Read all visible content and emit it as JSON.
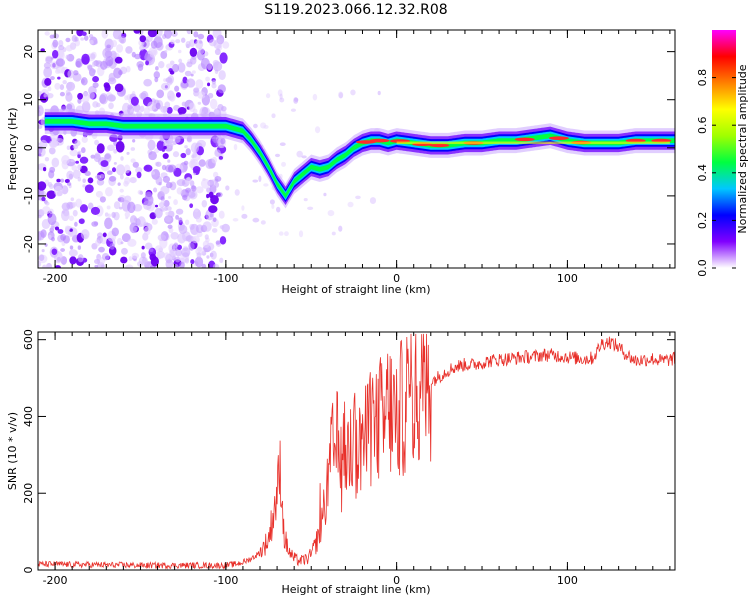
{
  "title": "S119.2023.066.12.32.R08",
  "colors": {
    "snr_line": "#e8302a",
    "axes": "#000000",
    "low_amp": "#e8d6ff"
  },
  "chart_data": [
    {
      "type": "heatmap",
      "name": "spectrogram",
      "xlabel": "Height of straight line (km)",
      "ylabel": "Frequency (Hz)",
      "xlim": [
        -210,
        163
      ],
      "ylim": [
        -25,
        24.5
      ],
      "x_ticks": [
        -200,
        -100,
        0,
        100
      ],
      "y_ticks": [
        -20,
        -10,
        0,
        10,
        20
      ],
      "description_series": {
        "name": "dominant frequency track",
        "x": [
          -205,
          -190,
          -180,
          -170,
          -160,
          -150,
          -140,
          -130,
          -120,
          -110,
          -100,
          -95,
          -90,
          -85,
          -80,
          -75,
          -70,
          -65,
          -60,
          -55,
          -50,
          -45,
          -40,
          -35,
          -30,
          -25,
          -20,
          -15,
          -10,
          -5,
          0,
          10,
          20,
          30,
          40,
          50,
          60,
          70,
          80,
          90,
          100,
          110,
          120,
          130,
          140,
          150,
          160
        ],
        "y": [
          5.5,
          5.5,
          5.0,
          5.0,
          4.5,
          4.5,
          4.5,
          4.5,
          4.5,
          4.5,
          4.5,
          4.0,
          3.5,
          1.5,
          -1.0,
          -4.0,
          -7.5,
          -10.0,
          -7.0,
          -5.5,
          -4.0,
          -4.5,
          -4.0,
          -2.5,
          -1.5,
          0.0,
          1.0,
          1.5,
          1.5,
          1.0,
          1.5,
          1.0,
          0.5,
          0.5,
          1.0,
          1.0,
          1.5,
          1.5,
          2.0,
          2.5,
          1.5,
          1.0,
          1.0,
          1.0,
          1.5,
          1.5,
          1.5
        ]
      }
    },
    {
      "type": "line",
      "name": "snr",
      "xlabel": "Height of straight line (km)",
      "ylabel": "SNR (10 * v/v)",
      "xlim": [
        -210,
        163
      ],
      "ylim": [
        0,
        620
      ],
      "x_ticks": [
        -200,
        -100,
        0,
        100
      ],
      "y_ticks": [
        0,
        200,
        400,
        600
      ],
      "series": [
        {
          "name": "SNR",
          "x": [
            -210,
            -200,
            -190,
            -180,
            -170,
            -160,
            -150,
            -140,
            -130,
            -120,
            -110,
            -100,
            -95,
            -90,
            -85,
            -80,
            -75,
            -72,
            -70,
            -68,
            -66,
            -64,
            -62,
            -60,
            -58,
            -55,
            -52,
            -50,
            -48,
            -45,
            -42,
            -40,
            -38,
            -35,
            -32,
            -30,
            -28,
            -25,
            -22,
            -20,
            -18,
            -15,
            -12,
            -10,
            -8,
            -5,
            -2,
            0,
            5,
            10,
            15,
            20,
            25,
            30,
            35,
            40,
            45,
            50,
            55,
            60,
            65,
            70,
            75,
            80,
            85,
            90,
            95,
            100,
            105,
            110,
            115,
            120,
            125,
            130,
            135,
            140,
            145,
            150,
            155,
            160,
            163
          ],
          "y": [
            15,
            15,
            14,
            14,
            13,
            13,
            12,
            12,
            12,
            12,
            12,
            12,
            15,
            20,
            30,
            45,
            80,
            150,
            200,
            270,
            90,
            60,
            40,
            30,
            25,
            25,
            30,
            40,
            60,
            100,
            170,
            230,
            300,
            330,
            260,
            320,
            290,
            350,
            300,
            360,
            330,
            380,
            350,
            410,
            360,
            430,
            400,
            390,
            440,
            460,
            470,
            490,
            505,
            520,
            530,
            535,
            535,
            540,
            545,
            548,
            550,
            552,
            555,
            555,
            560,
            560,
            558,
            555,
            552,
            550,
            552,
            590,
            595,
            580,
            560,
            545,
            548,
            550,
            545,
            548,
            550
          ]
        }
      ]
    },
    {
      "type": "colorbar",
      "name": "amplitude colorbar",
      "label": "Normalized spectral amplitude",
      "range": [
        0,
        1
      ],
      "ticks": [
        0.0,
        0.2,
        0.4,
        0.6,
        0.8
      ],
      "tick_labels": [
        "0.0",
        "0.2",
        "0.4",
        "0.6",
        "0.8"
      ],
      "colors": [
        "#ffffff",
        "#8000ff",
        "#0000ff",
        "#00c8ff",
        "#00ff40",
        "#a0ff00",
        "#ffff00",
        "#ff8000",
        "#ff0000",
        "#ff00ff"
      ]
    }
  ]
}
